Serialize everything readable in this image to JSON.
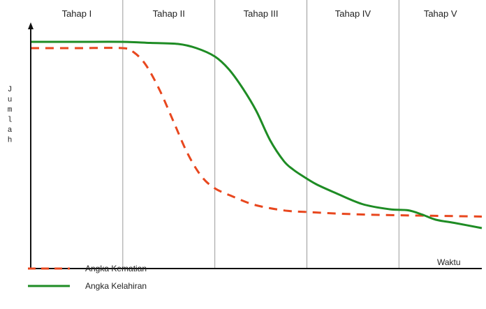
{
  "chart_data": {
    "type": "line",
    "stages": [
      "Tahap I",
      "Tahap II",
      "Tahap III",
      "Tahap IV",
      "Tahap V"
    ],
    "stage_bounds": [
      0,
      1,
      2,
      3,
      4,
      4.9
    ],
    "xlabel": "Waktu",
    "ylabel": "Jumlah",
    "ylim": [
      0,
      100
    ],
    "xlim": [
      0,
      4.9
    ],
    "grid": "vertical stage dividers",
    "legend_position": "bottom-left",
    "series": [
      {
        "name": "Angka Kematian",
        "color": "#e8471e",
        "dash": true,
        "x": [
          0,
          0.5,
          1.0,
          1.12,
          1.25,
          1.4,
          1.55,
          1.7,
          1.85,
          2.0,
          2.2,
          2.4,
          2.6,
          2.8,
          3.0,
          3.3,
          3.6,
          3.9,
          4.2,
          4.5,
          4.9
        ],
        "y": [
          97,
          97,
          97,
          95,
          89,
          77,
          62,
          47,
          36,
          30,
          26,
          22.5,
          20.5,
          19.2,
          18.7,
          18,
          17.5,
          17.2,
          17,
          16.8,
          16.5
        ]
      },
      {
        "name": "Angka Kelahiran",
        "color": "#1e8c24",
        "dash": false,
        "x": [
          0,
          0.5,
          1.0,
          1.3,
          1.6,
          1.8,
          2.0,
          2.15,
          2.3,
          2.45,
          2.6,
          2.75,
          2.85,
          2.95,
          3.1,
          3.3,
          3.6,
          3.9,
          4.1,
          4.25,
          4.4,
          4.6,
          4.9
        ],
        "y": [
          100,
          100,
          100,
          99.5,
          99,
          97,
          93,
          87,
          78,
          67,
          53,
          43,
          39,
          36,
          32,
          28,
          22.5,
          20,
          19.5,
          17.5,
          15,
          13.5,
          11
        ]
      }
    ]
  },
  "legend": {
    "items": [
      {
        "label": "Angka Kematian",
        "color": "#e8471e",
        "dash": true
      },
      {
        "label": "Angka Kelahiran",
        "color": "#1e8c24",
        "dash": false
      }
    ]
  }
}
